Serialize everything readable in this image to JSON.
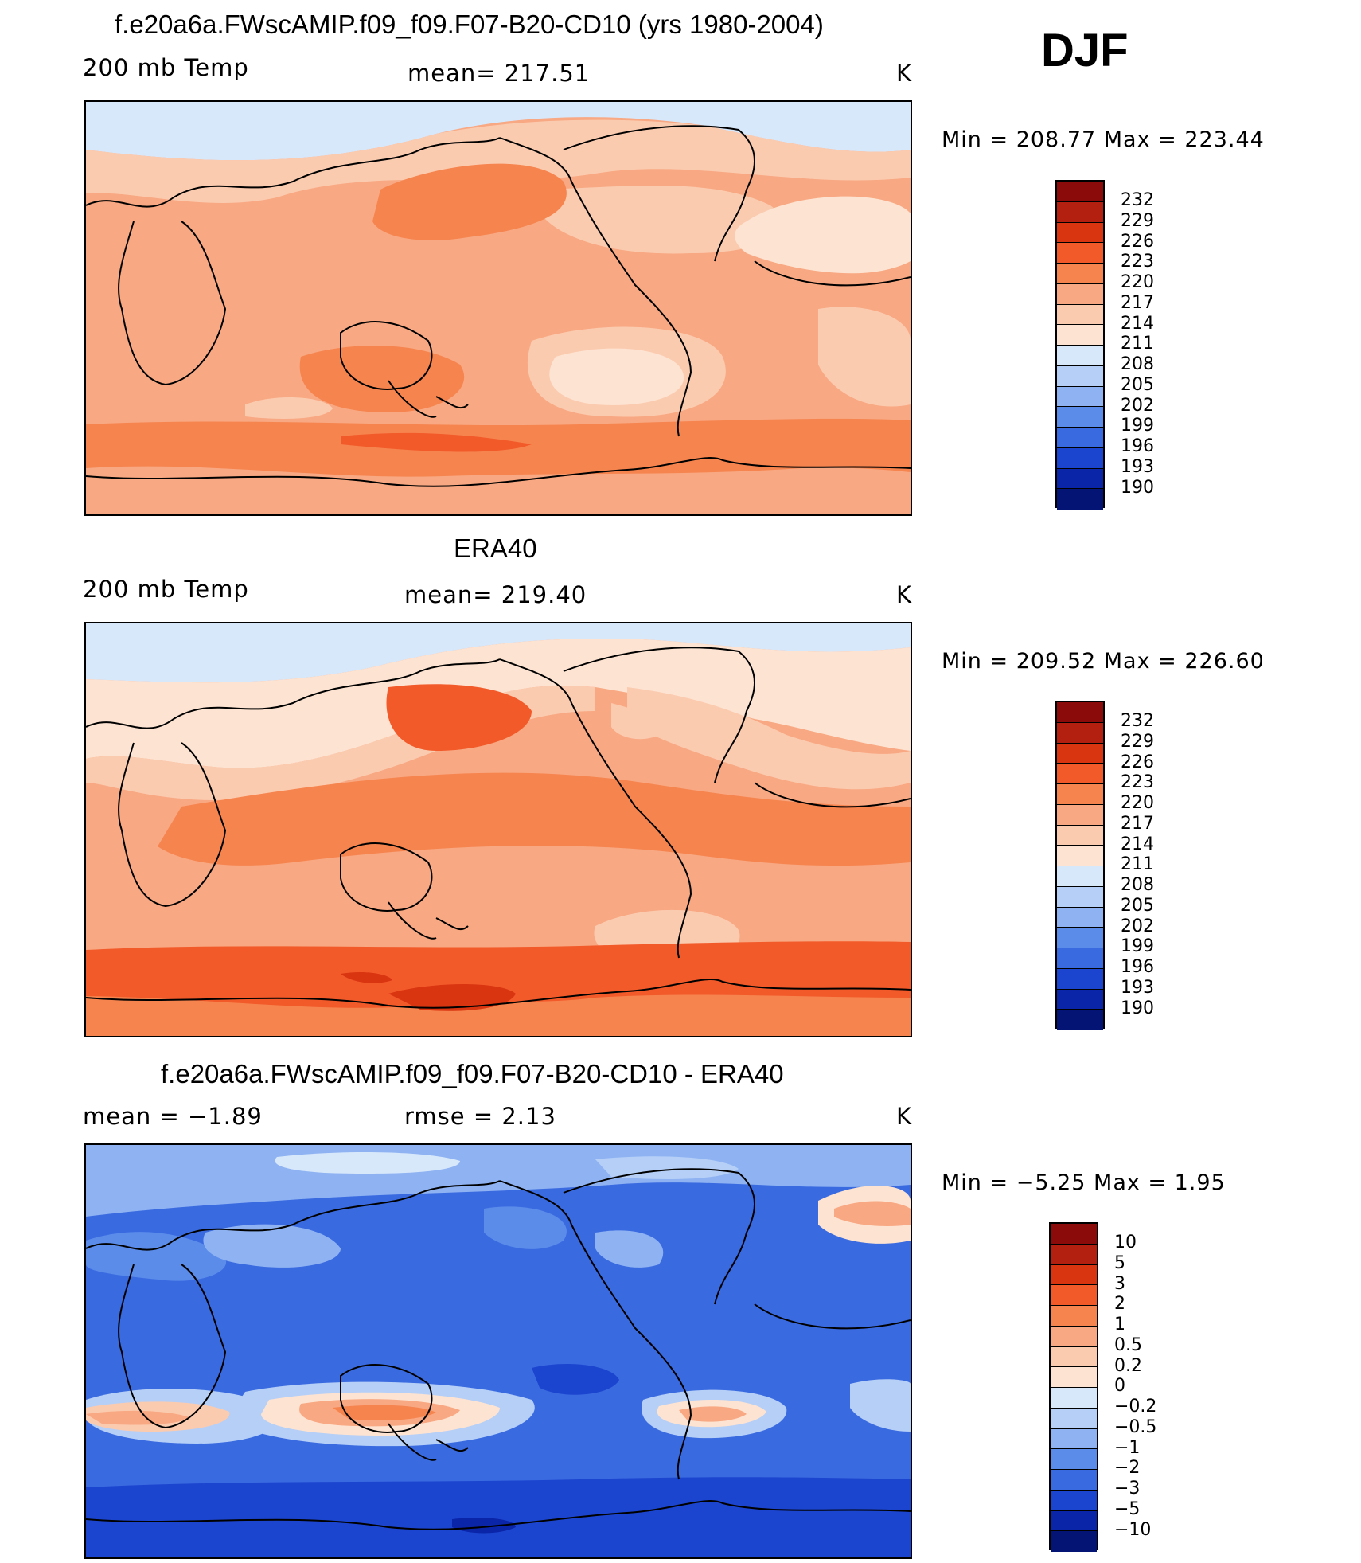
{
  "header": {
    "season": "DJF"
  },
  "panels": [
    {
      "title": "f.e20a6a.FWscAMIP.f09_f09.F07-B20-CD10 (yrs 1980-2004)",
      "left_label": "200 mb Temp",
      "center_label": "mean=  217.51",
      "units": "K",
      "min_max": "Min  =  208.77  Max  =  223.44",
      "legend_levels": [
        "232",
        "229",
        "226",
        "223",
        "220",
        "217",
        "214",
        "211",
        "208",
        "205",
        "202",
        "199",
        "196",
        "193",
        "190"
      ],
      "legend_colors": [
        "#8b0a0a",
        "#b3200f",
        "#d93510",
        "#f25a2a",
        "#f6844f",
        "#f8a882",
        "#fbcbb0",
        "#fde3d1",
        "#d8e8fb",
        "#b5cff7",
        "#8fb3f2",
        "#5b8cea",
        "#3a6ae0",
        "#1c45cf",
        "#0a25a8",
        "#031475"
      ]
    },
    {
      "title": "ERA40",
      "left_label": "200 mb Temp",
      "center_label": "mean=  219.40",
      "units": "K",
      "min_max": "Min  =  209.52  Max  =  226.60",
      "legend_levels": [
        "232",
        "229",
        "226",
        "223",
        "220",
        "217",
        "214",
        "211",
        "208",
        "205",
        "202",
        "199",
        "196",
        "193",
        "190"
      ],
      "legend_colors": [
        "#8b0a0a",
        "#b3200f",
        "#d93510",
        "#f25a2a",
        "#f6844f",
        "#f8a882",
        "#fbcbb0",
        "#fde3d1",
        "#d8e8fb",
        "#b5cff7",
        "#8fb3f2",
        "#5b8cea",
        "#3a6ae0",
        "#1c45cf",
        "#0a25a8",
        "#031475"
      ]
    },
    {
      "title": "f.e20a6a.FWscAMIP.f09_f09.F07-B20-CD10 - ERA40",
      "left_label": "mean =    −1.89",
      "center_label": "rmse =     2.13",
      "units": "K",
      "min_max": "Min  =   −5.25  Max  =      1.95",
      "legend_levels": [
        "10",
        "5",
        "3",
        "2",
        "1",
        "0.5",
        "0.2",
        "0",
        "−0.2",
        "−0.5",
        "−1",
        "−2",
        "−3",
        "−5",
        "−10"
      ],
      "legend_colors": [
        "#8b0a0a",
        "#b3200f",
        "#d93510",
        "#f25a2a",
        "#f6844f",
        "#f8a882",
        "#fbcbb0",
        "#fde3d1",
        "#d8e8fb",
        "#b5cff7",
        "#8fb3f2",
        "#5b8cea",
        "#3a6ae0",
        "#1c45cf",
        "#0a25a8",
        "#031475"
      ]
    }
  ]
}
